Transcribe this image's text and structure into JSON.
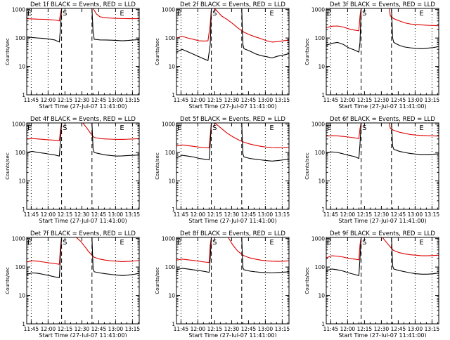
{
  "figure": {
    "xlabel": "Start Time (27-Jul-07 11:41:00)",
    "ylabel": "Counts/sec",
    "xticks": [
      "11:45",
      "12:00",
      "12:15",
      "12:30",
      "12:45",
      "13:00",
      "13:15"
    ],
    "yticks": [
      "1",
      "10",
      "100",
      "1000"
    ],
    "marker_S": "S",
    "marker_E": "E",
    "colors": {
      "events": "#000000",
      "lld": "#dd0000",
      "axes": "#000000"
    }
  },
  "chart_data": [
    {
      "type": "line",
      "title": "Det 1f BLACK = Events, RED = LLD",
      "xlabel": "Start Time (27-Jul-07 11:41:00)",
      "ylabel": "Counts/sec",
      "x_unit": "minutes_after_11:41",
      "xlim": [
        0,
        100
      ],
      "ylim": [
        1,
        1100
      ],
      "yscale": "log",
      "vlines_dotted": [
        4,
        19,
        79,
        94
      ],
      "vlines_dashed": [
        31,
        58
      ],
      "series": [
        {
          "name": "Events",
          "color": "#000000",
          "x": [
            0,
            5,
            10,
            15,
            20,
            25,
            29,
            30,
            31,
            58,
            59,
            60,
            65,
            70,
            75,
            80,
            85,
            90,
            95,
            100
          ],
          "y": [
            110,
            104,
            100,
            97,
            92,
            85,
            72,
            220,
            1100,
            1100,
            160,
            90,
            86,
            85,
            84,
            82,
            80,
            82,
            85,
            88
          ]
        },
        {
          "name": "LLD",
          "color": "#dd0000",
          "x": [
            0,
            5,
            10,
            15,
            20,
            25,
            29,
            30,
            31,
            58,
            59,
            62,
            65,
            70,
            75,
            80,
            85,
            90,
            95,
            100
          ],
          "y": [
            480,
            470,
            460,
            455,
            445,
            430,
            400,
            700,
            1100,
            1100,
            1100,
            700,
            560,
            520,
            500,
            490,
            485,
            480,
            480,
            480
          ]
        }
      ]
    },
    {
      "type": "line",
      "title": "Det 2f BLACK = Events, RED = LLD",
      "xlabel": "Start Time (27-Jul-07 11:41:00)",
      "ylabel": "Counts/sec",
      "x_unit": "minutes_after_11:41",
      "xlim": [
        0,
        100
      ],
      "ylim": [
        1,
        1100
      ],
      "yscale": "log",
      "vlines_dotted": [
        4,
        19,
        79,
        94
      ],
      "vlines_dashed": [
        31,
        58
      ],
      "series": [
        {
          "name": "Events",
          "color": "#000000",
          "x": [
            0,
            5,
            10,
            15,
            20,
            25,
            28,
            30,
            31,
            58,
            59,
            60,
            65,
            70,
            75,
            80,
            85,
            90,
            95,
            100
          ],
          "y": [
            32,
            40,
            33,
            27,
            22,
            18,
            16,
            60,
            1100,
            1100,
            60,
            42,
            35,
            28,
            24,
            22,
            20,
            23,
            25,
            28
          ]
        },
        {
          "name": "LLD",
          "color": "#dd0000",
          "x": [
            0,
            5,
            10,
            15,
            20,
            25,
            28,
            30,
            31,
            34,
            40,
            45,
            50,
            55,
            60,
            65,
            70,
            75,
            80,
            85,
            90,
            95,
            100
          ],
          "y": [
            100,
            115,
            100,
            90,
            80,
            78,
            80,
            300,
            1100,
            1100,
            600,
            450,
            320,
            220,
            160,
            130,
            110,
            95,
            80,
            72,
            75,
            80,
            85
          ]
        }
      ]
    },
    {
      "type": "line",
      "title": "Det 3f BLACK = Events, RED = LLD",
      "xlabel": "Start Time (27-Jul-07 11:41:00)",
      "ylabel": "Counts/sec",
      "x_unit": "minutes_after_11:41",
      "xlim": [
        0,
        100
      ],
      "ylim": [
        1,
        1100
      ],
      "yscale": "log",
      "vlines_dotted": [
        4,
        19,
        79,
        94
      ],
      "vlines_dashed": [
        31,
        58
      ],
      "series": [
        {
          "name": "Events",
          "color": "#000000",
          "x": [
            0,
            5,
            10,
            15,
            20,
            25,
            29,
            30,
            31,
            58,
            59,
            60,
            65,
            70,
            75,
            80,
            85,
            90,
            95,
            100
          ],
          "y": [
            55,
            65,
            70,
            60,
            45,
            38,
            32,
            70,
            1100,
            1100,
            100,
            70,
            55,
            48,
            45,
            43,
            42,
            44,
            46,
            50
          ]
        },
        {
          "name": "LLD",
          "color": "#dd0000",
          "x": [
            0,
            5,
            10,
            15,
            20,
            25,
            29,
            30,
            31,
            56,
            57,
            60,
            65,
            70,
            75,
            80,
            85,
            90,
            95,
            100
          ],
          "y": [
            230,
            260,
            265,
            245,
            210,
            190,
            180,
            600,
            1100,
            1100,
            600,
            480,
            400,
            340,
            310,
            300,
            290,
            280,
            275,
            270
          ]
        }
      ]
    },
    {
      "type": "line",
      "title": "Det 4f BLACK = Events, RED = LLD",
      "xlabel": "Start Time (27-Jul-07 11:41:00)",
      "ylabel": "Counts/sec",
      "x_unit": "minutes_after_11:41",
      "xlim": [
        0,
        100
      ],
      "ylim": [
        1,
        1100
      ],
      "yscale": "log",
      "vlines_dotted": [
        4,
        19,
        79,
        94
      ],
      "vlines_dashed": [
        31,
        58
      ],
      "series": [
        {
          "name": "Events",
          "color": "#000000",
          "x": [
            0,
            5,
            10,
            15,
            20,
            25,
            29,
            30,
            31,
            58,
            59,
            60,
            65,
            70,
            75,
            80,
            85,
            90,
            95,
            100
          ],
          "y": [
            100,
            110,
            100,
            95,
            88,
            82,
            75,
            250,
            1100,
            1100,
            130,
            100,
            90,
            82,
            78,
            75,
            76,
            78,
            80,
            82
          ]
        },
        {
          "name": "LLD",
          "color": "#dd0000",
          "x": [
            0,
            5,
            10,
            15,
            20,
            25,
            29,
            30,
            31,
            50,
            55,
            58,
            60,
            65,
            70,
            75,
            80,
            85,
            90,
            95,
            100
          ],
          "y": [
            300,
            310,
            300,
            290,
            280,
            270,
            260,
            600,
            1100,
            1100,
            600,
            400,
            340,
            310,
            300,
            295,
            290,
            290,
            295,
            300,
            310
          ]
        }
      ]
    },
    {
      "type": "line",
      "title": "Det 5f BLACK = Events, RED = LLD",
      "xlabel": "Start Time (27-Jul-07 11:41:00)",
      "ylabel": "Counts/sec",
      "x_unit": "minutes_after_11:41",
      "xlim": [
        0,
        100
      ],
      "ylim": [
        1,
        1100
      ],
      "yscale": "log",
      "vlines_dotted": [
        4,
        19,
        79,
        94
      ],
      "vlines_dashed": [
        31,
        58
      ],
      "series": [
        {
          "name": "Events",
          "color": "#000000",
          "x": [
            0,
            5,
            10,
            15,
            20,
            25,
            29,
            30,
            31,
            58,
            59,
            60,
            65,
            70,
            75,
            80,
            85,
            90,
            95,
            100
          ],
          "y": [
            65,
            80,
            75,
            70,
            62,
            58,
            55,
            200,
            1100,
            1100,
            90,
            70,
            62,
            58,
            55,
            52,
            50,
            52,
            55,
            58
          ]
        },
        {
          "name": "LLD",
          "color": "#dd0000",
          "x": [
            0,
            5,
            10,
            15,
            20,
            25,
            29,
            30,
            31,
            34,
            40,
            45,
            50,
            55,
            60,
            65,
            70,
            75,
            80,
            85,
            90,
            95,
            100
          ],
          "y": [
            170,
            185,
            175,
            165,
            155,
            150,
            145,
            400,
            1100,
            1100,
            700,
            480,
            360,
            280,
            230,
            200,
            180,
            165,
            155,
            150,
            148,
            150,
            155
          ]
        }
      ]
    },
    {
      "type": "line",
      "title": "Det 6f BLACK = Events, RED = LLD",
      "xlabel": "Start Time (27-Jul-07 11:41:00)",
      "ylabel": "Counts/sec",
      "x_unit": "minutes_after_11:41",
      "xlim": [
        0,
        100
      ],
      "ylim": [
        1,
        1100
      ],
      "yscale": "log",
      "vlines_dotted": [
        4,
        19,
        79,
        94
      ],
      "vlines_dashed": [
        31,
        58
      ],
      "series": [
        {
          "name": "Events",
          "color": "#000000",
          "x": [
            0,
            5,
            10,
            15,
            20,
            25,
            29,
            30,
            31,
            58,
            59,
            60,
            65,
            70,
            75,
            80,
            85,
            90,
            95,
            100
          ],
          "y": [
            95,
            105,
            100,
            90,
            80,
            72,
            62,
            200,
            1100,
            1100,
            170,
            130,
            110,
            100,
            92,
            88,
            85,
            85,
            87,
            90
          ]
        },
        {
          "name": "LLD",
          "color": "#dd0000",
          "x": [
            0,
            5,
            10,
            15,
            20,
            25,
            29,
            30,
            31,
            56,
            57,
            60,
            65,
            70,
            75,
            80,
            85,
            90,
            95,
            100
          ],
          "y": [
            380,
            390,
            385,
            370,
            350,
            330,
            310,
            700,
            1100,
            1100,
            700,
            600,
            520,
            470,
            430,
            410,
            400,
            390,
            385,
            380
          ]
        }
      ]
    },
    {
      "type": "line",
      "title": "Det 7f BLACK = Events, RED = LLD",
      "xlabel": "Start Time (27-Jul-07 11:41:00)",
      "ylabel": "Counts/sec",
      "x_unit": "minutes_after_11:41",
      "xlim": [
        0,
        100
      ],
      "ylim": [
        1,
        1100
      ],
      "yscale": "log",
      "vlines_dotted": [
        4,
        19,
        79,
        94
      ],
      "vlines_dashed": [
        31,
        58
      ],
      "series": [
        {
          "name": "Events",
          "color": "#000000",
          "x": [
            0,
            5,
            10,
            15,
            20,
            25,
            29,
            30,
            31,
            58,
            59,
            60,
            65,
            70,
            75,
            80,
            85,
            90,
            95,
            100
          ],
          "y": [
            55,
            62,
            60,
            55,
            50,
            45,
            42,
            250,
            1100,
            1100,
            85,
            68,
            62,
            58,
            55,
            52,
            50,
            52,
            55,
            60
          ]
        },
        {
          "name": "LLD",
          "color": "#dd0000",
          "x": [
            0,
            5,
            10,
            15,
            20,
            25,
            29,
            30,
            31,
            44,
            48,
            52,
            55,
            58,
            60,
            65,
            70,
            75,
            80,
            85,
            90,
            95,
            100
          ],
          "y": [
            150,
            165,
            160,
            150,
            140,
            132,
            125,
            500,
            1100,
            1100,
            800,
            500,
            350,
            260,
            220,
            190,
            175,
            165,
            160,
            155,
            158,
            162,
            170
          ]
        }
      ]
    },
    {
      "type": "line",
      "title": "Det 8f BLACK = Events, RED = LLD",
      "xlabel": "Start Time (27-Jul-07 11:41:00)",
      "ylabel": "Counts/sec",
      "x_unit": "minutes_after_11:41",
      "xlim": [
        0,
        100
      ],
      "ylim": [
        1,
        1100
      ],
      "yscale": "log",
      "vlines_dotted": [
        4,
        19,
        79,
        94
      ],
      "vlines_dashed": [
        31,
        58
      ],
      "series": [
        {
          "name": "Events",
          "color": "#000000",
          "x": [
            0,
            5,
            10,
            15,
            20,
            25,
            29,
            30,
            31,
            58,
            59,
            60,
            65,
            70,
            75,
            80,
            85,
            90,
            95,
            100
          ],
          "y": [
            80,
            90,
            85,
            80,
            75,
            70,
            65,
            200,
            1100,
            1100,
            95,
            80,
            72,
            68,
            65,
            63,
            62,
            64,
            66,
            68
          ]
        },
        {
          "name": "LLD",
          "color": "#dd0000",
          "x": [
            0,
            5,
            10,
            15,
            20,
            25,
            29,
            30,
            31,
            46,
            50,
            54,
            58,
            60,
            65,
            70,
            75,
            80,
            85,
            90,
            95,
            100
          ],
          "y": [
            175,
            190,
            180,
            170,
            160,
            150,
            145,
            600,
            1100,
            1100,
            600,
            380,
            280,
            250,
            210,
            190,
            175,
            165,
            160,
            158,
            160,
            165
          ]
        }
      ]
    },
    {
      "type": "line",
      "title": "Det 9f BLACK = Events, RED = LLD",
      "xlabel": "Start Time (27-Jul-07 11:41:00)",
      "ylabel": "Counts/sec",
      "x_unit": "minutes_after_11:41",
      "xlim": [
        0,
        100
      ],
      "ylim": [
        1,
        1100
      ],
      "yscale": "log",
      "vlines_dotted": [
        4,
        19,
        79,
        94
      ],
      "vlines_dashed": [
        31,
        58
      ],
      "series": [
        {
          "name": "Events",
          "color": "#000000",
          "x": [
            0,
            5,
            10,
            15,
            20,
            25,
            29,
            30,
            31,
            58,
            59,
            60,
            65,
            70,
            75,
            80,
            85,
            90,
            95,
            100
          ],
          "y": [
            75,
            85,
            80,
            72,
            62,
            55,
            50,
            200,
            1100,
            1100,
            110,
            85,
            75,
            68,
            62,
            58,
            56,
            56,
            58,
            62
          ]
        },
        {
          "name": "LLD",
          "color": "#dd0000",
          "x": [
            0,
            5,
            10,
            15,
            20,
            25,
            29,
            30,
            31,
            50,
            54,
            58,
            60,
            65,
            70,
            75,
            80,
            85,
            90,
            95,
            100
          ],
          "y": [
            210,
            250,
            240,
            225,
            200,
            190,
            180,
            600,
            1100,
            1100,
            700,
            450,
            380,
            320,
            290,
            270,
            260,
            250,
            250,
            255,
            260
          ]
        }
      ]
    }
  ]
}
